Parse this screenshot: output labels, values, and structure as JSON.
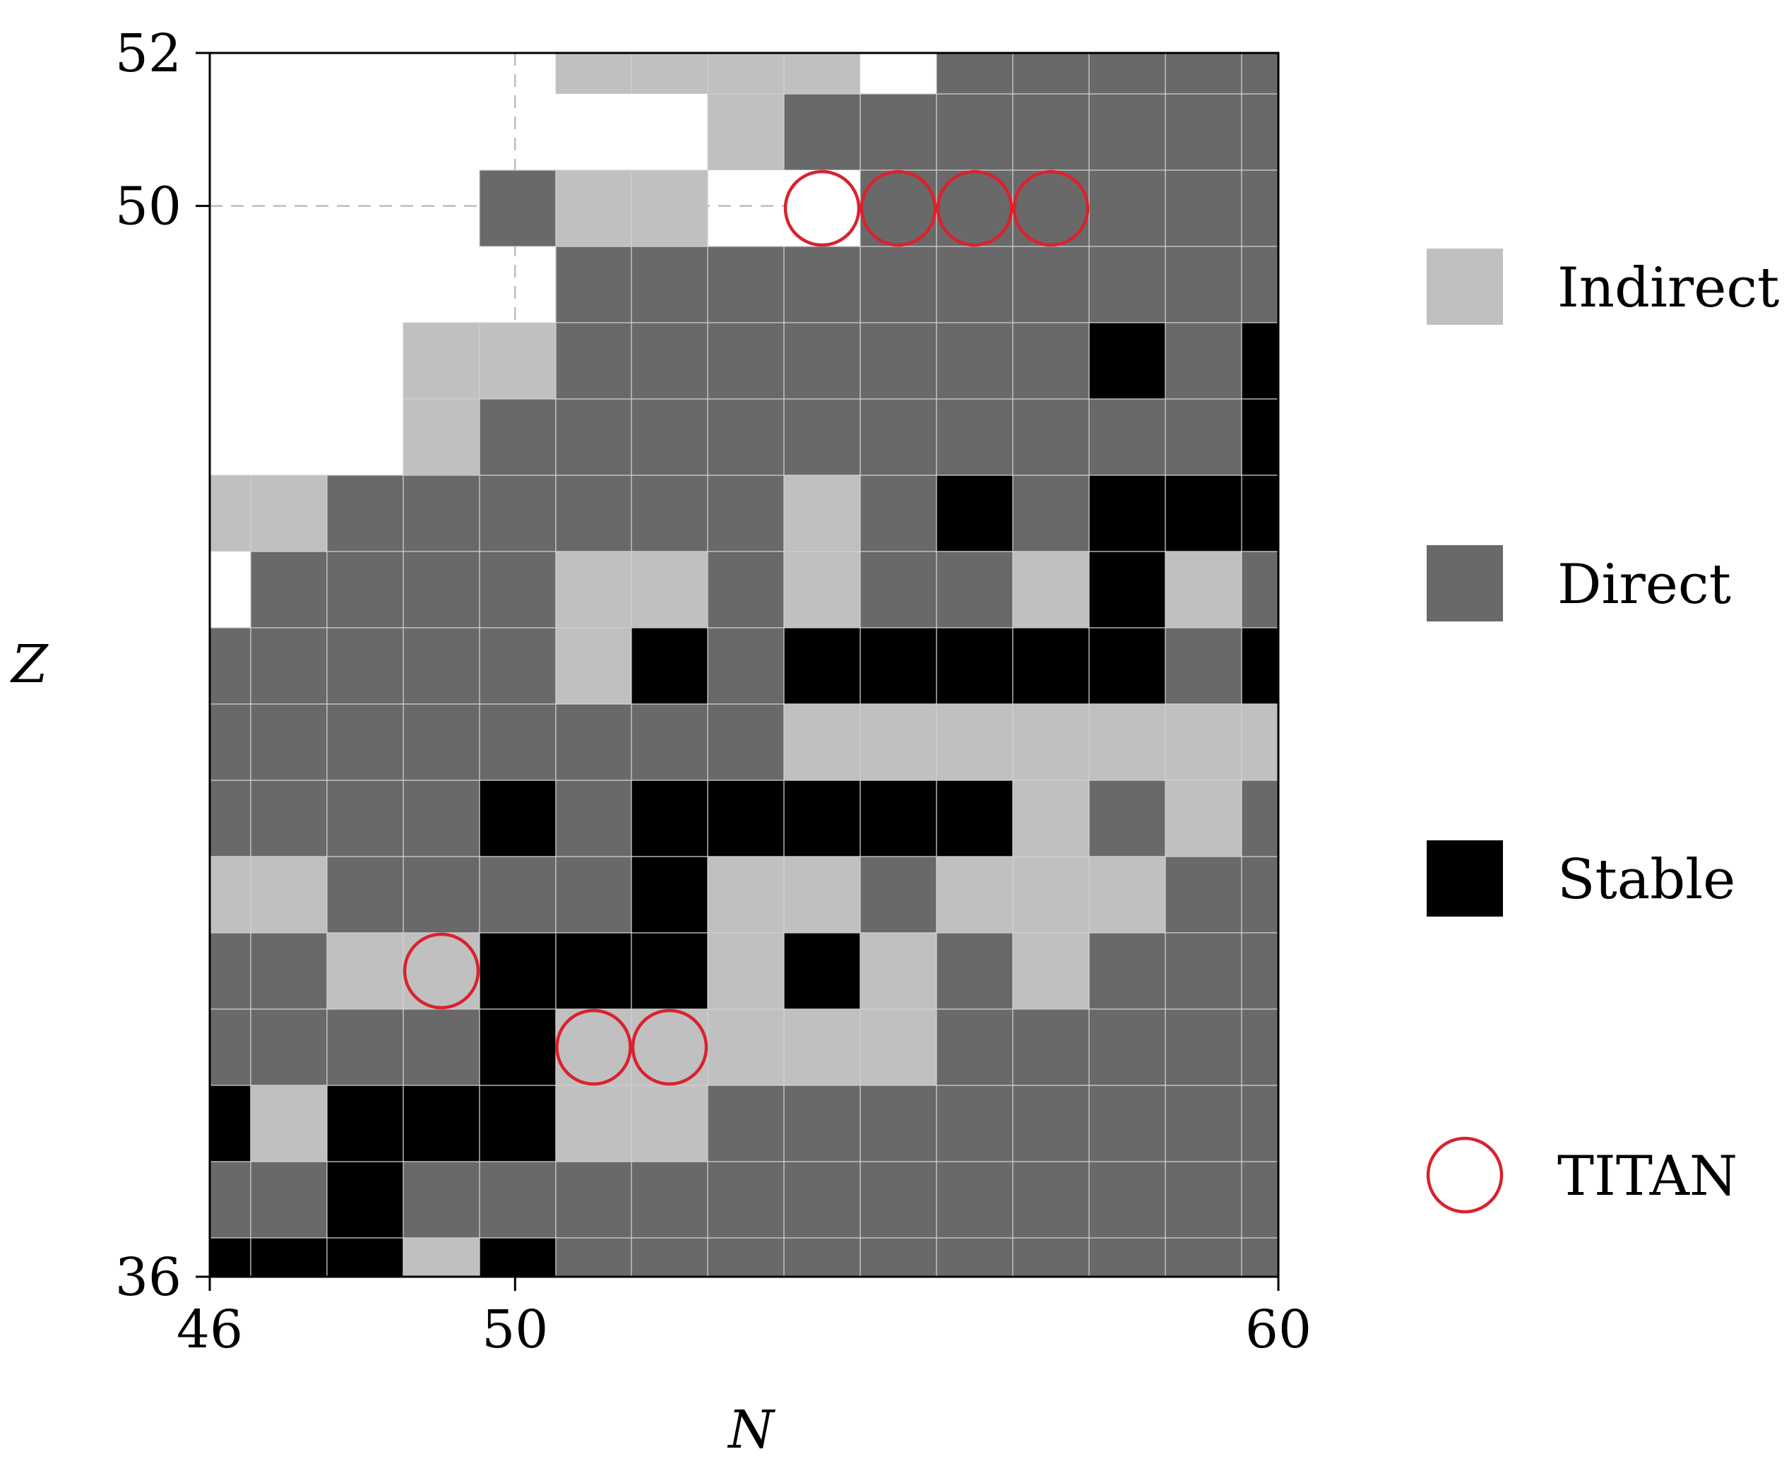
{
  "chart_data": {
    "type": "heatmap",
    "xlabel": "N",
    "ylabel": "Z",
    "xlim": [
      46,
      60
    ],
    "ylim": [
      36,
      52
    ],
    "x_ticks": [
      46,
      50,
      60
    ],
    "y_ticks": [
      36,
      50,
      52
    ],
    "reference_lines": {
      "x": 50,
      "y": 50
    },
    "categories": [
      "Indirect",
      "Direct",
      "Stable"
    ],
    "colors": {
      "Indirect": "#c0c0c0",
      "Direct": "#696969",
      "Stable": "#000000",
      "Empty": "#ffffff",
      "TITAN": "#d9222e"
    },
    "legend": [
      {
        "label": "Indirect",
        "symbol": "square",
        "color": "#c0c0c0"
      },
      {
        "label": "Direct",
        "symbol": "square",
        "color": "#696969"
      },
      {
        "label": "Stable",
        "symbol": "square",
        "color": "#000000"
      },
      {
        "label": "TITAN",
        "symbol": "circle",
        "color": "#d9222e"
      }
    ],
    "grid_note": "rows listed top (Z≈51.5) to bottom (Z≈36); columns N≈46..60; codes: .=empty, I=Indirect, D=Direct, S=Stable",
    "rows": [
      ".....IIII.DDDDD",
      ".......IDDDDDDD",
      "....DII..DDDDDD",
      ".....DDDDDDDDDD",
      "...IIDDDDDDDSDS",
      "...IDDDDDDDDDDS",
      "IIDDDDDDIDSDSSS",
      ".DDDDIIDIDDISID",
      "DDDDDISDSSSSSDS",
      "DDDDDDDDIIIIIII",
      "DDDDSDSSSSSIDID",
      "IIDDDDSIIDIIIDD",
      "DDIISSSISIDIDDD",
      "DDDDSIIIIIDDDDD",
      "SISSSIIDDDDDDDD",
      "DDSDDDDDDDDDDDD",
      "SSSISDDDDDDDDDD"
    ],
    "titan": [
      {
        "row": 2,
        "col": 8
      },
      {
        "row": 2,
        "col": 9
      },
      {
        "row": 2,
        "col": 10
      },
      {
        "row": 2,
        "col": 11
      },
      {
        "row": 12,
        "col": 3
      },
      {
        "row": 13,
        "col": 5
      },
      {
        "row": 13,
        "col": 6
      }
    ]
  }
}
